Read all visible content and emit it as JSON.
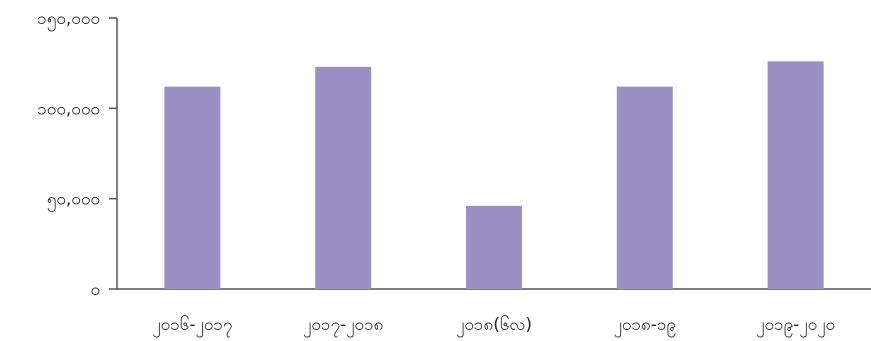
{
  "chart_data": {
    "type": "bar",
    "categories": [
      "၂၀၁၆-၂၀၁၇",
      "၂၀၁၇-၂၀၁၈",
      "၂၀၁၈(၆လ)",
      "၂၀၁၈-၁၉",
      "၂၀၁၉-၂၀၂၀"
    ],
    "values": [
      112000,
      123000,
      46000,
      112000,
      126000
    ],
    "title": "",
    "xlabel": "",
    "ylabel": "",
    "ylim": [
      0,
      150000
    ],
    "yticks": [
      0,
      50000,
      100000,
      150000
    ],
    "ytick_labels": [
      "၀",
      "၅၀,၀၀၀",
      "၁၀၀,၀၀၀",
      "၁၅၀,၀၀၀"
    ],
    "bar_color": "#9a90c4",
    "axis_color": "#555555",
    "grid": false
  }
}
